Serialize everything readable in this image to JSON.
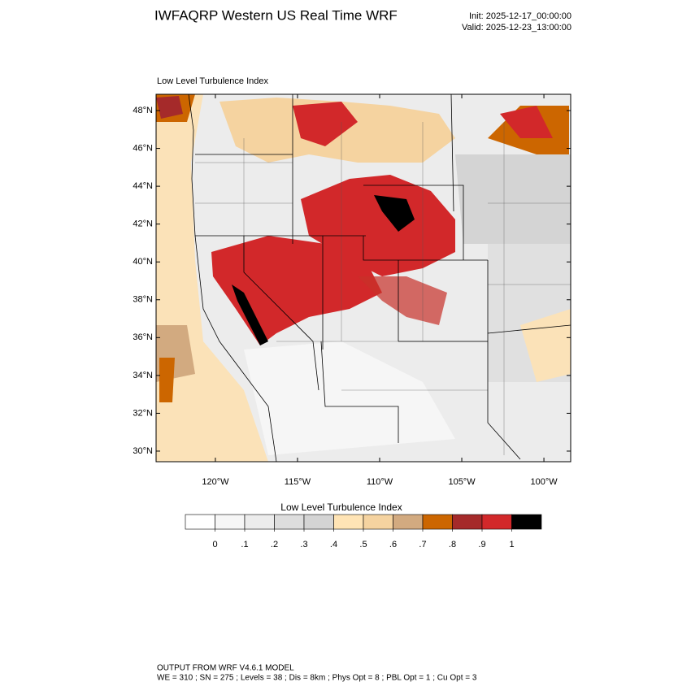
{
  "header": {
    "title": "IWFAQRP Western US Real Time WRF",
    "init": "Init: 2025-12-17_00:00:00",
    "valid": "Valid: 2025-12-23_13:00:00"
  },
  "map": {
    "title": "Low Level Turbulence Index",
    "xlim": [
      -123.61,
      -98.37
    ],
    "ylim": [
      29.44,
      48.86
    ],
    "xticks": [
      {
        "value": -120,
        "label": "120°W"
      },
      {
        "value": -115,
        "label": "115°W"
      },
      {
        "value": -110,
        "label": "110°W"
      },
      {
        "value": -105,
        "label": "105°W"
      },
      {
        "value": -100,
        "label": "100°W"
      }
    ],
    "yticks": [
      {
        "value": 48,
        "label": "48°N"
      },
      {
        "value": 46,
        "label": "46°N"
      },
      {
        "value": 44,
        "label": "44°N"
      },
      {
        "value": 42,
        "label": "42°N"
      },
      {
        "value": 40,
        "label": "40°N"
      },
      {
        "value": 38,
        "label": "38°N"
      },
      {
        "value": 36,
        "label": "36°N"
      },
      {
        "value": 34,
        "label": "34°N"
      },
      {
        "value": 32,
        "label": "32°N"
      },
      {
        "value": 30,
        "label": "30°N"
      }
    ]
  },
  "colorbar": {
    "title": "Low Level Turbulence Index",
    "colors": [
      "#ffffff",
      "#f6f6f6",
      "#ececec",
      "#dddddd",
      "#d4d4d4",
      "#ffe4b5",
      "#f5d3a0",
      "#d2aa80",
      "#cc6600",
      "#a52a2a",
      "#d2282a",
      "#000000"
    ],
    "ticks": [
      0,
      {
        "value": 0.1,
        "label": ".1"
      },
      {
        "value": 0.2,
        "label": ".2"
      },
      {
        "value": 0.3,
        "label": ".3"
      },
      {
        "value": 0.4,
        "label": ".4"
      },
      {
        "value": 0.5,
        "label": ".5"
      },
      {
        "value": 0.6,
        "label": ".6"
      },
      {
        "value": 0.7,
        "label": ".7"
      },
      {
        "value": 0.8,
        "label": ".8"
      },
      {
        "value": 0.9,
        "label": ".9"
      },
      1
    ]
  },
  "footer": {
    "line1": "OUTPUT FROM WRF V4.6.1 MODEL",
    "line2": "WE = 310 ; SN = 275 ; Levels = 38 ; Dis = 8km ; Phys Opt = 8 ; PBL Opt = 1 ; Cu Opt = 3"
  }
}
